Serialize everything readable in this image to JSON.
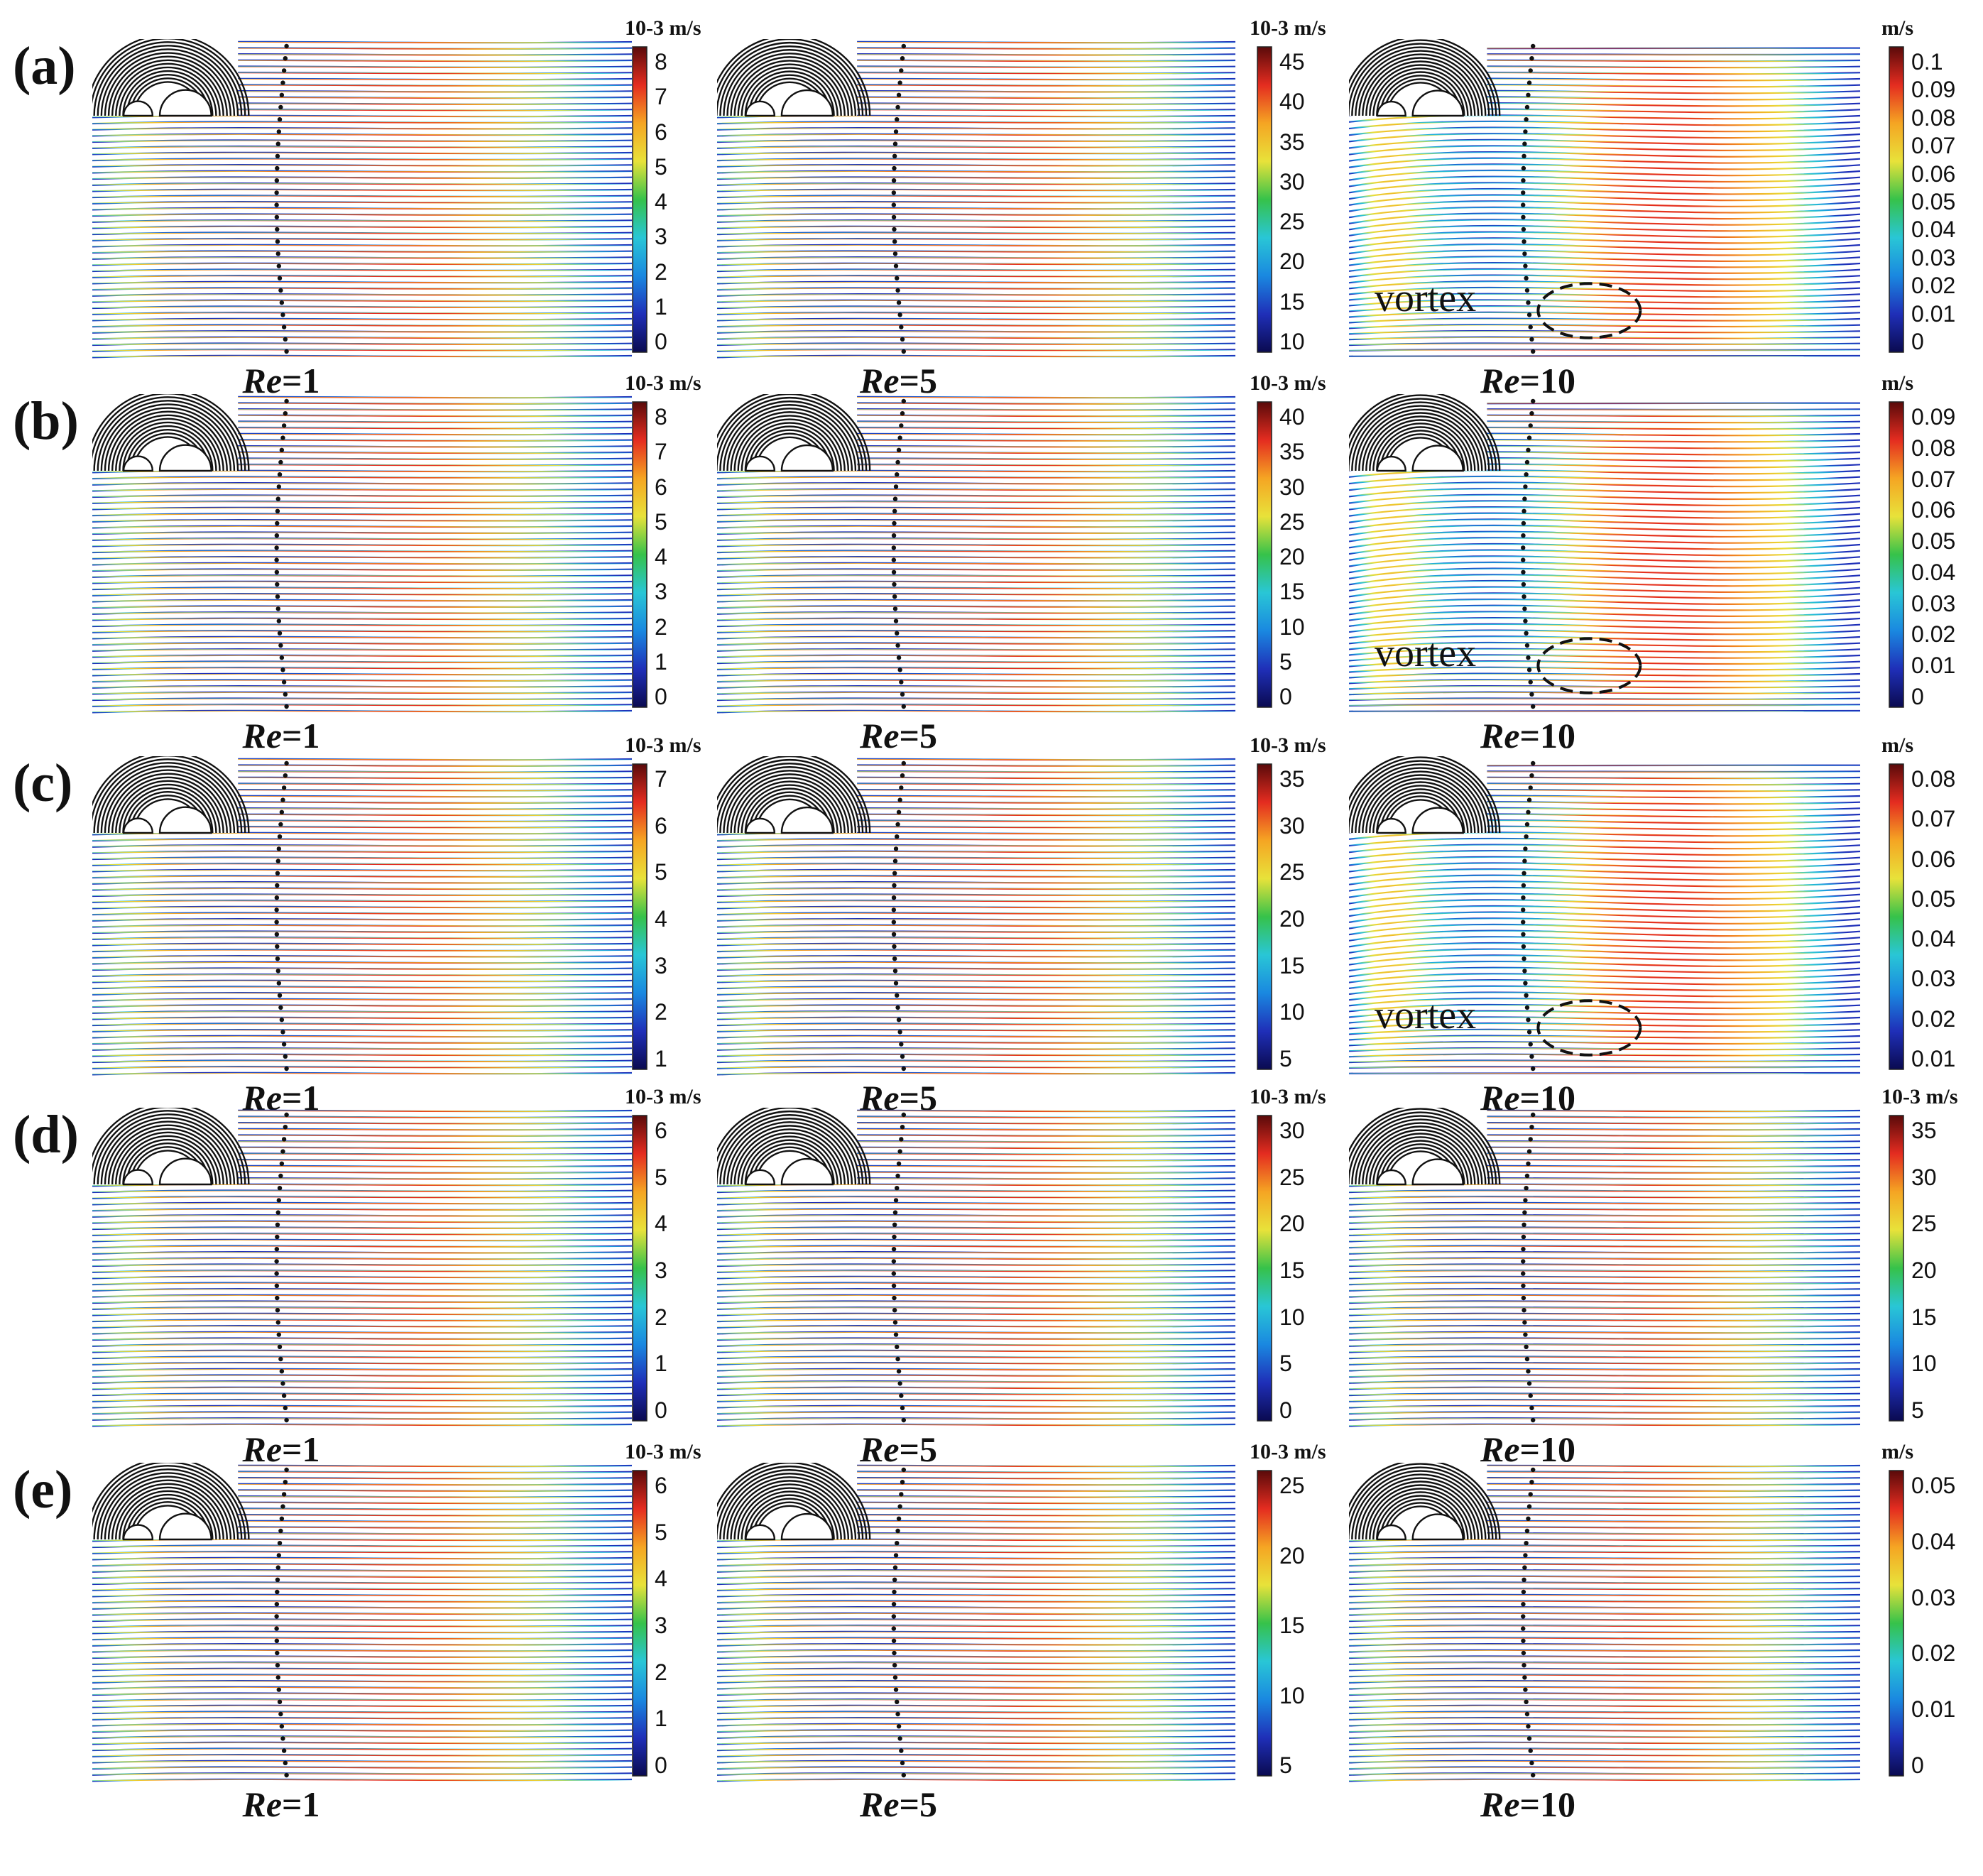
{
  "figure": {
    "rows": [
      {
        "label": "(a)",
        "panels": [
          {
            "re": "1",
            "unit": "10-3 m/s",
            "ticks": [
              "8",
              "7",
              "6",
              "5",
              "4",
              "3",
              "2",
              "1",
              "0"
            ],
            "vortex": null
          },
          {
            "re": "5",
            "unit": "10-3 m/s",
            "ticks": [
              "45",
              "40",
              "35",
              "30",
              "25",
              "20",
              "15",
              "10"
            ],
            "vortex": null
          },
          {
            "re": "10",
            "unit": "m/s",
            "ticks": [
              "0.1",
              "0.09",
              "0.08",
              "0.07",
              "0.06",
              "0.05",
              "0.04",
              "0.03",
              "0.02",
              "0.01",
              "0"
            ],
            "vortex": "vortex"
          }
        ]
      },
      {
        "label": "(b)",
        "panels": [
          {
            "re": "1",
            "unit": "10-3 m/s",
            "ticks": [
              "8",
              "7",
              "6",
              "5",
              "4",
              "3",
              "2",
              "1",
              "0"
            ],
            "vortex": null
          },
          {
            "re": "5",
            "unit": "10-3 m/s",
            "ticks": [
              "40",
              "35",
              "30",
              "25",
              "20",
              "15",
              "10",
              "5",
              "0"
            ],
            "vortex": null
          },
          {
            "re": "10",
            "unit": "m/s",
            "ticks": [
              "0.09",
              "0.08",
              "0.07",
              "0.06",
              "0.05",
              "0.04",
              "0.03",
              "0.02",
              "0.01",
              "0"
            ],
            "vortex": "vortex"
          }
        ]
      },
      {
        "label": "(c)",
        "panels": [
          {
            "re": "1",
            "unit": "10-3 m/s",
            "ticks": [
              "7",
              "6",
              "5",
              "4",
              "3",
              "2",
              "1"
            ],
            "vortex": null
          },
          {
            "re": "5",
            "unit": "10-3 m/s",
            "ticks": [
              "35",
              "30",
              "25",
              "20",
              "15",
              "10",
              "5"
            ],
            "vortex": null
          },
          {
            "re": "10",
            "unit": "m/s",
            "ticks": [
              "0.08",
              "0.07",
              "0.06",
              "0.05",
              "0.04",
              "0.03",
              "0.02",
              "0.01"
            ],
            "vortex": "vortex"
          }
        ]
      },
      {
        "label": "(d)",
        "panels": [
          {
            "re": "1",
            "unit": "10-3 m/s",
            "ticks": [
              "6",
              "5",
              "4",
              "3",
              "2",
              "1",
              "0"
            ],
            "vortex": null
          },
          {
            "re": "5",
            "unit": "10-3 m/s",
            "ticks": [
              "30",
              "25",
              "20",
              "15",
              "10",
              "5",
              "0"
            ],
            "vortex": null
          },
          {
            "re": "10",
            "unit": "10-3 m/s",
            "ticks": [
              "35",
              "30",
              "25",
              "20",
              "15",
              "10",
              "5"
            ],
            "vortex": null
          }
        ]
      },
      {
        "label": "(e)",
        "panels": [
          {
            "re": "1",
            "unit": "10-3 m/s",
            "ticks": [
              "6",
              "5",
              "4",
              "3",
              "2",
              "1",
              "0"
            ],
            "vortex": null
          },
          {
            "re": "5",
            "unit": "10-3 m/s",
            "ticks": [
              "25",
              "20",
              "15",
              "10",
              "5"
            ],
            "vortex": null
          },
          {
            "re": "10",
            "unit": "m/s",
            "ticks": [
              "0.05",
              "0.04",
              "0.03",
              "0.02",
              "0.01",
              "0"
            ],
            "vortex": null
          }
        ]
      }
    ]
  },
  "colors": {
    "colormap": [
      "#0a0a50",
      "#1f2fb8",
      "#1a88e0",
      "#29c6d6",
      "#36c24a",
      "#e8e23a",
      "#f5a523",
      "#e42c20",
      "#5a0a0a"
    ],
    "streamline_black": "#111111",
    "vortex_dash": "#111111"
  }
}
